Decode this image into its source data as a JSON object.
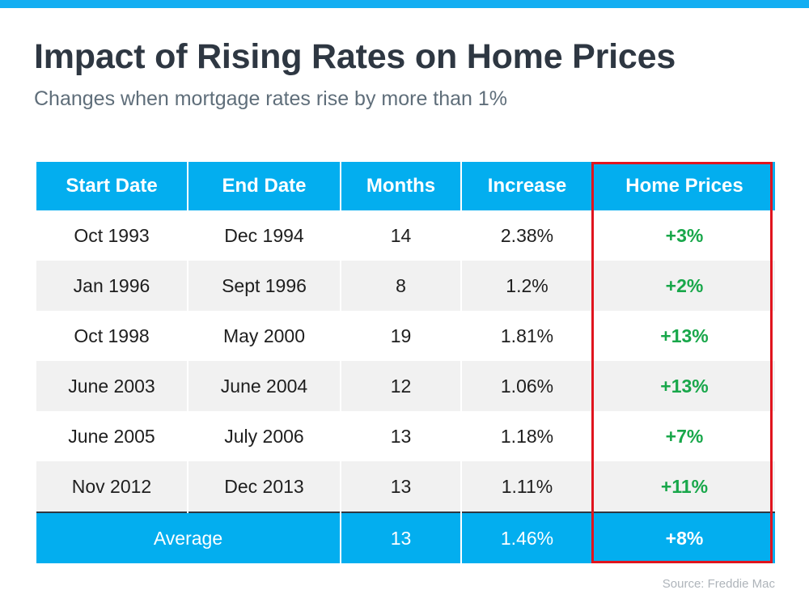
{
  "chart_data": {
    "type": "table",
    "title": "Impact of Rising Rates on Home Prices",
    "subtitle": "Changes when mortgage rates rise by more than 1%",
    "columns": [
      "Start Date",
      "End Date",
      "Months",
      "Increase",
      "Home Prices"
    ],
    "rows": [
      [
        "Oct 1993",
        "Dec 1994",
        "14",
        "2.38%",
        "+3%"
      ],
      [
        "Jan 1996",
        "Sept 1996",
        "8",
        "1.2%",
        "+2%"
      ],
      [
        "Oct 1998",
        "May 2000",
        "19",
        "1.81%",
        "+13%"
      ],
      [
        "June 2003",
        "June 2004",
        "12",
        "1.06%",
        "+13%"
      ],
      [
        "June 2005",
        "July 2006",
        "13",
        "1.18%",
        "+7%"
      ],
      [
        "Nov 2012",
        "Dec 2013",
        "13",
        "1.11%",
        "+11%"
      ]
    ],
    "average": {
      "label": "Average",
      "months": "13",
      "increase": "1.46%",
      "home_prices": "+8%"
    },
    "highlighted_column": "Home Prices",
    "source": "Source: Freddie Mac"
  },
  "colors": {
    "accent_blue": "#03aeef",
    "home_price_green": "#18a74a",
    "highlight_red": "#e0141e",
    "title_dark": "#2e3742"
  }
}
